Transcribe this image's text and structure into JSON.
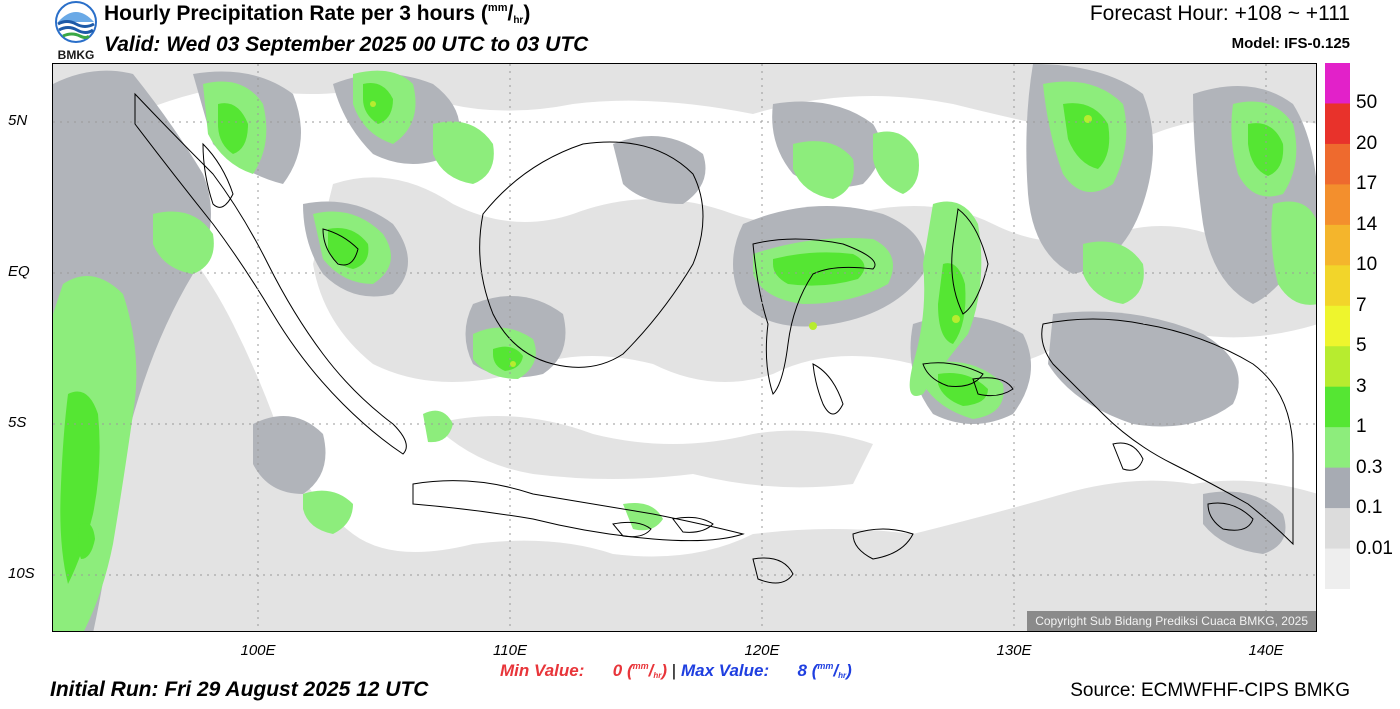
{
  "header": {
    "org": "BMKG",
    "title": "Hourly Precipitation Rate per 3 hours",
    "title_unit_top": "mm",
    "title_unit_bottom": "hr",
    "valid": "Valid: Wed 03 September 2025 00 UTC to 03 UTC",
    "forecast_hour": "Forecast Hour: +108 ~ +111",
    "model": "Model: IFS-0.125"
  },
  "axes": {
    "lat_labels": [
      "5N",
      "EQ",
      "5S",
      "10S"
    ],
    "lon_labels": [
      "100E",
      "110E",
      "120E",
      "130E",
      "140E"
    ]
  },
  "stats": {
    "min_label": "Min Value:",
    "min_value": "0",
    "max_label": "Max Value:",
    "max_value": "8",
    "unit_top": "mm",
    "unit_bottom": "hr",
    "separator": "|"
  },
  "footer": {
    "initial_run": "Initial Run: Fri 29 August 2025 12 UTC",
    "source": "Source: ECMWFHF-CIPS BMKG",
    "copyright": "Copyright Sub Bidang Prediksi Cuaca BMKG, 2025"
  },
  "colorbar": {
    "labels": [
      "50",
      "20",
      "17",
      "14",
      "10",
      "7",
      "5",
      "3",
      "1",
      "0.3",
      "0.1",
      "0.01"
    ],
    "colors": [
      "#e221c9",
      "#e8322b",
      "#ee6a2e",
      "#f38f2d",
      "#f4b52c",
      "#f2d52a",
      "#eef52d",
      "#b7ec2f",
      "#55e633",
      "#8ded7c",
      "#a7abb3",
      "#dcdcdc"
    ],
    "bottom_color": "#eeeeee"
  },
  "map": {
    "colors": {
      "light": "#e3e3e3",
      "gray": "#b1b4ba",
      "lightgreen": "#8ded7c",
      "green": "#55e633",
      "yellowgreen": "#b7ec2f",
      "coast": "#000000",
      "grid": "#9a9a9a"
    }
  }
}
